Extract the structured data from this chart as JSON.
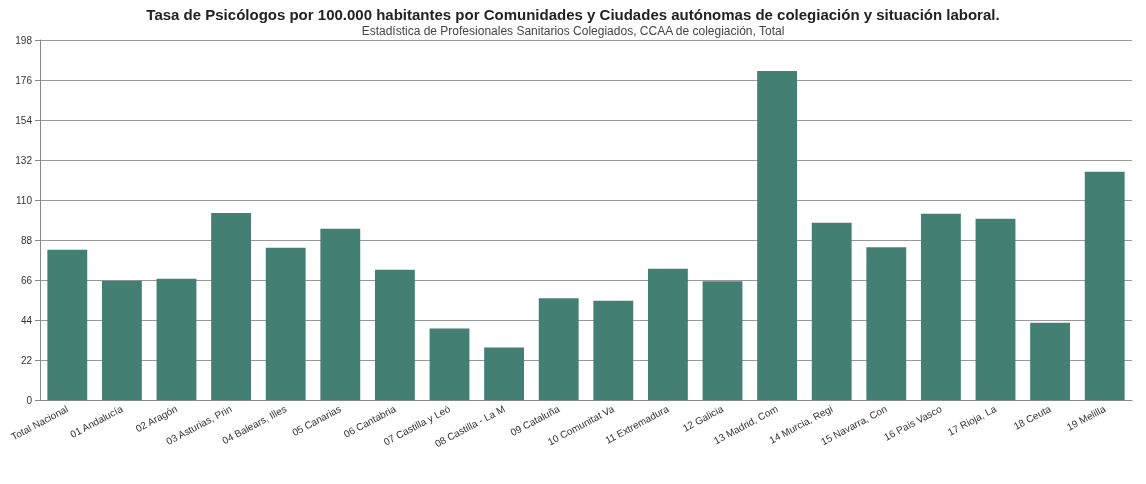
{
  "chart_data": {
    "type": "bar",
    "title": "Tasa de Psicólogos por 100.000 habitantes por Comunidades y Ciudades autónomas de colegiación y situación laboral.",
    "subtitle": "Estadística de Profesionales Sanitarios Colegiados, CCAA de colegiación, Total",
    "categories": [
      "Total Nacional",
      "01 Andalucía",
      "02 Aragón",
      "03 Asturias, Prin",
      "04 Balears, Illes",
      "05 Canarias",
      "06 Cantabria",
      "07 Castilla y Leó",
      "08 Castilla - La M",
      "09 Cataluña",
      "10 Comunitat Va",
      "11 Extremadura",
      "12 Galicia",
      "13 Madrid, Com",
      "14 Murcia, Regi",
      "15 Navarra, Con",
      "16 País Vasco",
      "17 Rioja, La",
      "18 Ceuta",
      "19 Melilla"
    ],
    "values": [
      82.7,
      65.6,
      66.7,
      102.9,
      83.8,
      94.2,
      71.6,
      39.3,
      28.9,
      56,
      54.6,
      72.2,
      65.3,
      181,
      97.5,
      84,
      102.5,
      99.7,
      42.5,
      125.6
    ],
    "color": "#447f74",
    "ylim": [
      0,
      198
    ],
    "yticks": [
      0,
      22,
      44,
      66,
      88,
      110,
      132,
      154,
      176,
      198
    ],
    "grid": "y"
  }
}
